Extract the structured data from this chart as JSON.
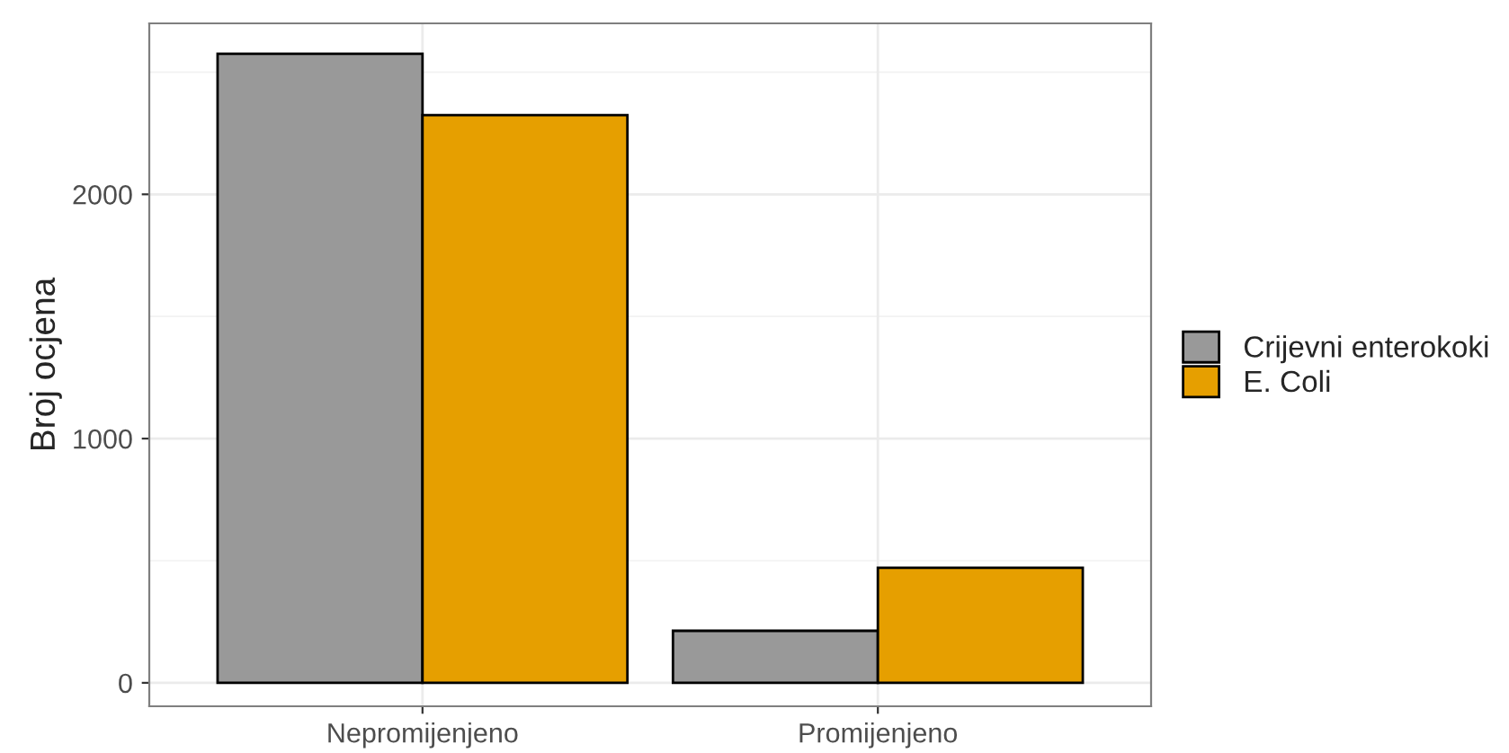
{
  "chart_data": {
    "type": "bar",
    "ylabel": "Broj ocjena",
    "categories": [
      "Nepromijenjeno",
      "Promijenjeno"
    ],
    "series": [
      {
        "name": "Crijevni enterokoki",
        "color": "#999999",
        "values": [
          2575,
          213
        ]
      },
      {
        "name": "E. Coli",
        "color": "#e69f00",
        "values": [
          2324,
          471
        ]
      }
    ],
    "ylim": [
      -96,
      2700
    ],
    "yticks": [
      0,
      1000,
      2000
    ],
    "grid": true,
    "legend": "right"
  }
}
